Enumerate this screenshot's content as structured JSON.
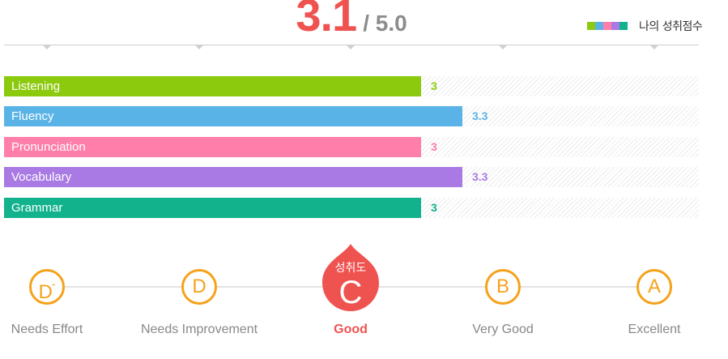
{
  "score": {
    "value": "3.1",
    "max": "/ 5.0"
  },
  "legend": {
    "label": "나의 성취점수",
    "swatches": [
      "#8cca0e",
      "#5ab3e6",
      "#ff7eaa",
      "#a97ae3",
      "#12b28c"
    ]
  },
  "colors": {
    "accent": "#ef5350",
    "grade_ring": "#f5a21b"
  },
  "chart_data": {
    "type": "bar",
    "orientation": "horizontal",
    "categories": [
      "Listening",
      "Fluency",
      "Pronunciation",
      "Vocabulary",
      "Grammar"
    ],
    "values": [
      3,
      3.3,
      3,
      3.3,
      3
    ],
    "value_labels": [
      "3",
      "3.3",
      "3",
      "3.3",
      "3"
    ],
    "colors": [
      "#8cca0e",
      "#5ab3e6",
      "#ff7eaa",
      "#a97ae3",
      "#12b28c"
    ],
    "xlim": [
      0,
      5
    ],
    "grid": false
  },
  "grades": {
    "current_label": "성취도",
    "items": [
      {
        "letter": "D",
        "sup": "-",
        "label": "Needs Effort"
      },
      {
        "letter": "D",
        "sup": "",
        "label": "Needs Improvement"
      },
      {
        "letter": "C",
        "sup": "",
        "label": "Good",
        "active": true
      },
      {
        "letter": "B",
        "sup": "",
        "label": "Very Good"
      },
      {
        "letter": "A",
        "sup": "",
        "label": "Excellent"
      }
    ]
  }
}
